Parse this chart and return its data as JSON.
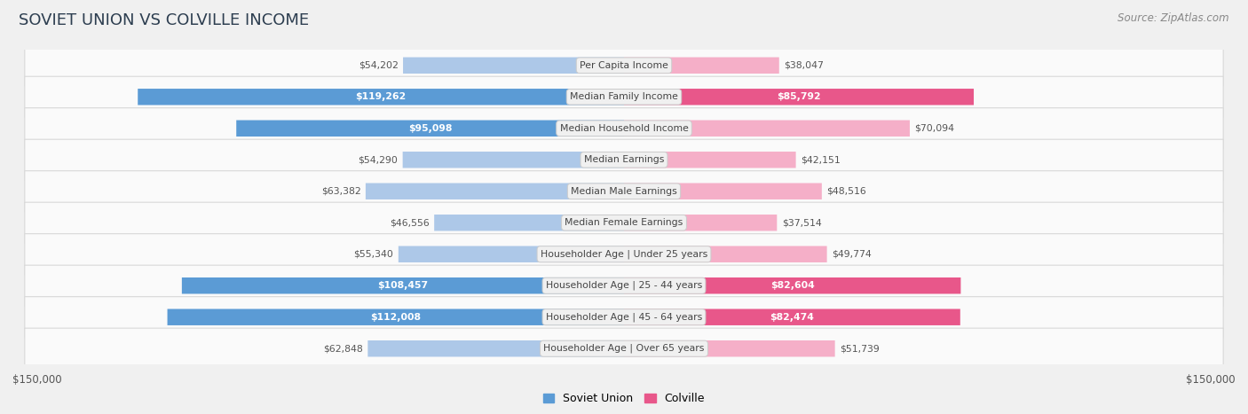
{
  "title": "SOVIET UNION VS COLVILLE INCOME",
  "source": "Source: ZipAtlas.com",
  "categories": [
    "Per Capita Income",
    "Median Family Income",
    "Median Household Income",
    "Median Earnings",
    "Median Male Earnings",
    "Median Female Earnings",
    "Householder Age | Under 25 years",
    "Householder Age | 25 - 44 years",
    "Householder Age | 45 - 64 years",
    "Householder Age | Over 65 years"
  ],
  "soviet_values": [
    54202,
    119262,
    95098,
    54290,
    63382,
    46556,
    55340,
    108457,
    112008,
    62848
  ],
  "colville_values": [
    38047,
    85792,
    70094,
    42151,
    48516,
    37514,
    49774,
    82604,
    82474,
    51739
  ],
  "soviet_labels": [
    "$54,202",
    "$119,262",
    "$95,098",
    "$54,290",
    "$63,382",
    "$46,556",
    "$55,340",
    "$108,457",
    "$112,008",
    "$62,848"
  ],
  "colville_labels": [
    "$38,047",
    "$85,792",
    "$70,094",
    "$42,151",
    "$48,516",
    "$37,514",
    "$49,774",
    "$82,604",
    "$82,474",
    "$51,739"
  ],
  "max_value": 150000,
  "soviet_color_light": "#adc8e8",
  "soviet_color_dark": "#5b9bd5",
  "colville_color_light": "#f5afc8",
  "colville_color_dark": "#e8578a",
  "bar_height": 0.52,
  "background_color": "#f0f0f0",
  "row_bg_color": "#fafafa",
  "row_border_color": "#d8d8d8",
  "label_dark_threshold": 80000,
  "axis_label_left": "$150,000",
  "axis_label_right": "$150,000",
  "legend_soviet": "Soviet Union",
  "legend_colville": "Colville",
  "title_color": "#2d3e50",
  "label_color": "#555555",
  "source_color": "#888888",
  "center_label_color": "#444444",
  "center_bg_color": "#f0f0f0",
  "center_border_color": "#cccccc"
}
